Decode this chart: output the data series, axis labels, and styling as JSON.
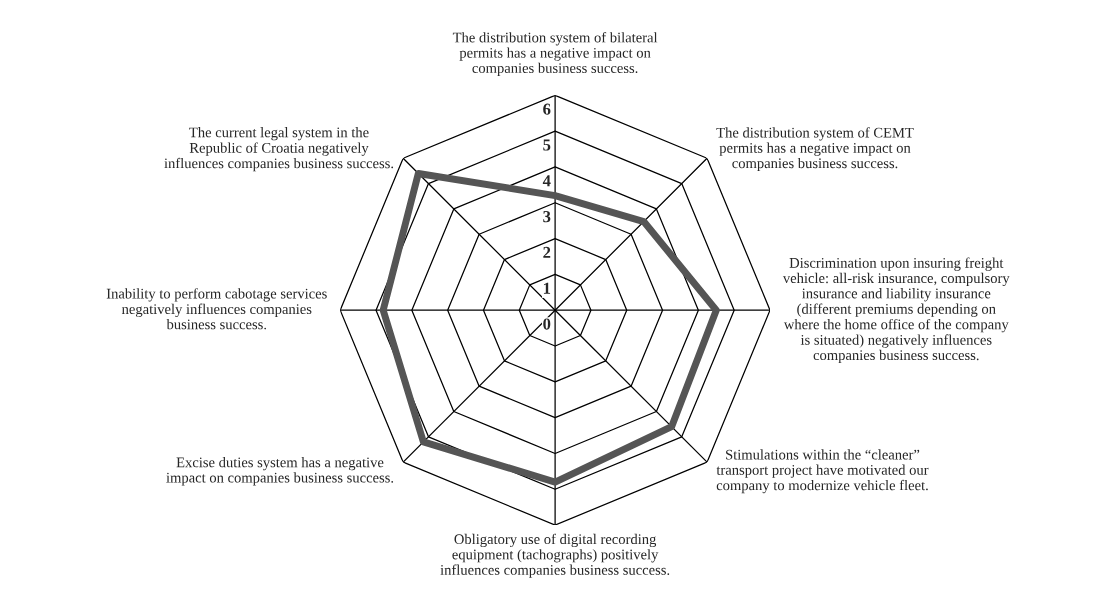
{
  "chart_data": {
    "type": "radar",
    "categories": [
      "The distribution system of bilateral\npermits has a negative impact on\ncompanies business success.",
      "The distribution system of CEMT\npermits has a negative impact on\ncompanies business success.",
      "Discrimination upon insuring freight\nvehicle: all-risk insurance, compulsory\ninsurance and liability insurance\n(different premiums depending on\nwhere the home office of the company\nis situated) negatively influences\ncompanies business success.",
      "Stimulations within the “cleaner”\ntransport project have motivated our\ncompany to modernize vehicle fleet.",
      "Obligatory use of digital recording\nequipment (tachographs) positively\ninfluences companies business success.",
      "Excise duties system has a negative\nimpact on companies business success.",
      "Inability to perform cabotage services\nnegatively influences companies\nbusiness success.",
      "The current legal system in the\nRepublic of Croatia negatively\ninfluences companies business success."
    ],
    "series": [
      {
        "color": "#555555",
        "values": [
          3.2,
          3.5,
          4.5,
          4.6,
          4.8,
          5.2,
          4.8,
          5.4
        ]
      }
    ],
    "ylim": [
      0,
      6
    ],
    "yticks": [
      0,
      1,
      2,
      3,
      4,
      5,
      6
    ],
    "grid": true
  }
}
